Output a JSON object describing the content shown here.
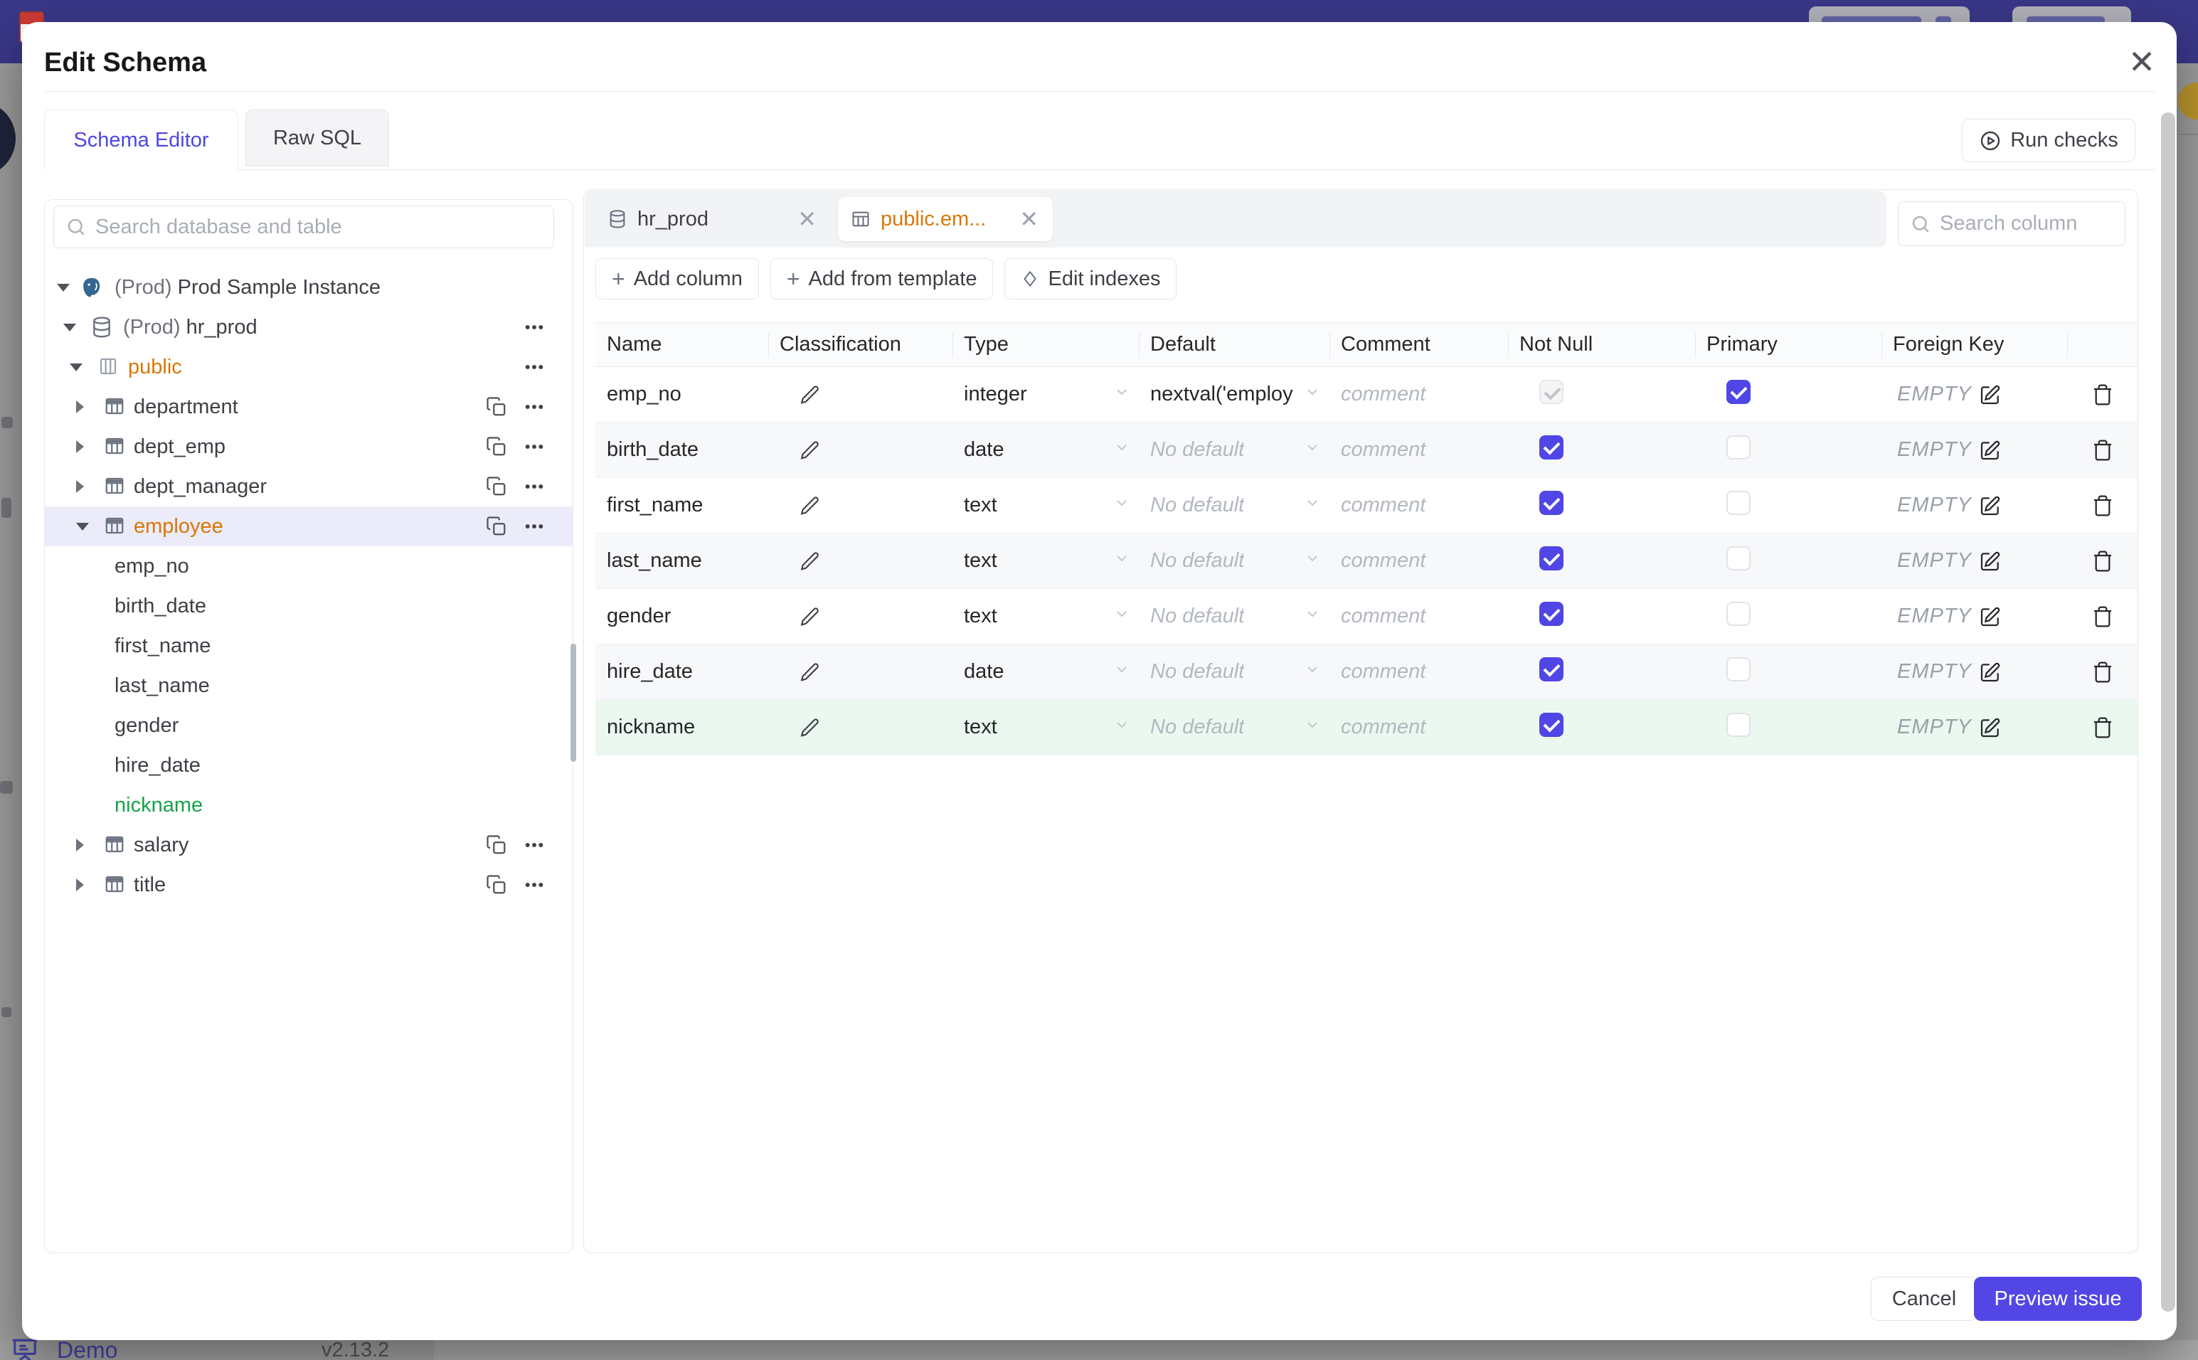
{
  "page": {
    "backdrop": {
      "demo_link": "Demo",
      "version": "v2.13.2"
    },
    "colors": {
      "topbar": "#3a3789",
      "accent_indigo": "#4f46e5",
      "primary_button": "#5247e5",
      "modified_orange": "#d97706",
      "new_item_green": "#16a34a",
      "new_row_bg": "#eaf8f0",
      "selected_row_bg": "#ebebf9"
    }
  },
  "modal": {
    "title": "Edit Schema",
    "tabs": [
      {
        "label": "Schema Editor",
        "active": true
      },
      {
        "label": "Raw SQL",
        "active": false
      }
    ],
    "run_checks": "Run checks",
    "footer": {
      "cancel": "Cancel",
      "primary": "Preview issue"
    }
  },
  "sidebar": {
    "search_placeholder": "Search database and table",
    "tree": [
      {
        "kind": "instance",
        "level": 0,
        "icon": "postgres",
        "prefix": "(Prod) ",
        "label": "Prod Sample Instance",
        "expanded": true
      },
      {
        "kind": "database",
        "level": 1,
        "icon": "database",
        "prefix": "(Prod) ",
        "label": "hr_prod",
        "expanded": true,
        "menu": true
      },
      {
        "kind": "schema",
        "level": 2,
        "icon": "schema",
        "label": "public",
        "expanded": true,
        "menu": true,
        "highlight": "orange"
      },
      {
        "kind": "table",
        "level": 3,
        "icon": "table",
        "label": "department",
        "expanded": false,
        "copy": true,
        "menu": true
      },
      {
        "kind": "table",
        "level": 3,
        "icon": "table",
        "label": "dept_emp",
        "expanded": false,
        "copy": true,
        "menu": true
      },
      {
        "kind": "table",
        "level": 3,
        "icon": "table",
        "label": "dept_manager",
        "expanded": false,
        "copy": true,
        "menu": true
      },
      {
        "kind": "table",
        "level": 3,
        "icon": "table",
        "label": "employee",
        "expanded": true,
        "copy": true,
        "menu": true,
        "selected": true,
        "highlight": "orange"
      },
      {
        "kind": "column",
        "level": 4,
        "label": "emp_no"
      },
      {
        "kind": "column",
        "level": 4,
        "label": "birth_date"
      },
      {
        "kind": "column",
        "level": 4,
        "label": "first_name"
      },
      {
        "kind": "column",
        "level": 4,
        "label": "last_name"
      },
      {
        "kind": "column",
        "level": 4,
        "label": "gender"
      },
      {
        "kind": "column",
        "level": 4,
        "label": "hire_date"
      },
      {
        "kind": "column",
        "level": 4,
        "label": "nickname",
        "highlight": "green"
      },
      {
        "kind": "table",
        "level": 3,
        "icon": "table",
        "label": "salary",
        "expanded": false,
        "copy": true,
        "menu": true
      },
      {
        "kind": "table",
        "level": 3,
        "icon": "table",
        "label": "title",
        "expanded": false,
        "copy": true,
        "menu": true
      }
    ]
  },
  "editor": {
    "tabs": [
      {
        "label": "hr_prod",
        "icon": "database",
        "active": false
      },
      {
        "label": "public.em...",
        "icon": "table",
        "active": true
      }
    ],
    "toolbar": [
      {
        "icon": "plus",
        "label": "Add column"
      },
      {
        "icon": "plus",
        "label": "Add from template"
      },
      {
        "icon": "diamond",
        "label": "Edit indexes"
      }
    ],
    "search_placeholder": "Search column",
    "table": {
      "headers": [
        "Name",
        "Classification",
        "Type",
        "Default",
        "Comment",
        "Not Null",
        "Primary",
        "Foreign Key",
        ""
      ],
      "comment_placeholder": "comment",
      "fk_empty_label": "EMPTY",
      "rows": [
        {
          "name": "emp_no",
          "type": "integer",
          "default": "nextval('employ",
          "default_is_placeholder": false,
          "not_null": "disabled-checked",
          "primary": true,
          "foreign_key": "EMPTY"
        },
        {
          "name": "birth_date",
          "type": "date",
          "default": "No default",
          "default_is_placeholder": true,
          "not_null": "checked",
          "primary": false,
          "foreign_key": "EMPTY"
        },
        {
          "name": "first_name",
          "type": "text",
          "default": "No default",
          "default_is_placeholder": true,
          "not_null": "checked",
          "primary": false,
          "foreign_key": "EMPTY"
        },
        {
          "name": "last_name",
          "type": "text",
          "default": "No default",
          "default_is_placeholder": true,
          "not_null": "checked",
          "primary": false,
          "foreign_key": "EMPTY"
        },
        {
          "name": "gender",
          "type": "text",
          "default": "No default",
          "default_is_placeholder": true,
          "not_null": "checked",
          "primary": false,
          "foreign_key": "EMPTY"
        },
        {
          "name": "hire_date",
          "type": "date",
          "default": "No default",
          "default_is_placeholder": true,
          "not_null": "checked",
          "primary": false,
          "foreign_key": "EMPTY"
        },
        {
          "name": "nickname",
          "type": "text",
          "default": "No default",
          "default_is_placeholder": true,
          "not_null": "checked",
          "primary": false,
          "foreign_key": "EMPTY",
          "highlight": "green"
        }
      ]
    }
  }
}
